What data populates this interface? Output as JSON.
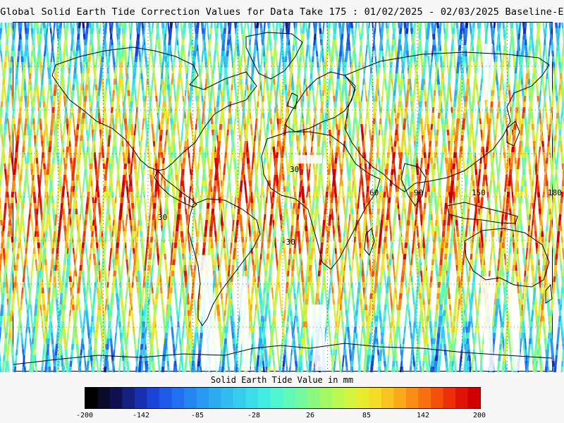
{
  "title": "Global Solid Earth Tide Correction Values for Data Take 175 : 01/02/2025 - 02/03/2025 Baseline-E",
  "colorbar": {
    "label": "Solid Earth Tide Value in mm",
    "tick_labels": [
      "-200",
      "-142",
      "-85",
      "-28",
      "26",
      "85",
      "142",
      "200"
    ],
    "palette": [
      "#000000",
      "#0a0a2a",
      "#101050",
      "#142080",
      "#1830b0",
      "#1a44d8",
      "#1e5ae8",
      "#2070f0",
      "#2484f0",
      "#2898f0",
      "#2eacf0",
      "#32bcf0",
      "#36ccec",
      "#3cdce8",
      "#42ece0",
      "#50f4d0",
      "#60f8b8",
      "#74f8a0",
      "#8cf880",
      "#a4f864",
      "#bcf850",
      "#d4f440",
      "#e8ec30",
      "#f4dc28",
      "#f8c420",
      "#f8a818",
      "#f88c14",
      "#f87010",
      "#f4500c",
      "#ec3008",
      "#e01404",
      "#d00000"
    ]
  },
  "map": {
    "value_min": -200,
    "value_max": 200,
    "track_pattern": "ascending and descending ground tracks colored by solid earth tide value",
    "graticule_labels": [
      "30",
      "30",
      "60",
      "90",
      "150",
      "180",
      "-30"
    ]
  },
  "chart_data": {
    "type": "map",
    "title": "Global Solid Earth Tide Correction Values for Data Take 175 : 01/02/2025 - 02/03/2025 Baseline-E",
    "colorbar_label": "Solid Earth Tide Value in mm",
    "color_scale_range": [
      -200,
      200
    ],
    "color_scale_ticks": [
      -200,
      -142,
      -85,
      -28,
      26,
      85,
      142,
      200
    ],
    "projection": "equirectangular (cylindrical)",
    "dominant_values_by_latitude": {
      "equatorial_band": "high positive (red/orange, ~140 to 200 mm)",
      "mid_latitudes": "mixed (yellow/green/cyan, ~0 to 100 mm)",
      "high_latitudes": "low (cyan/blue, ~-60 to 30 mm)"
    }
  }
}
